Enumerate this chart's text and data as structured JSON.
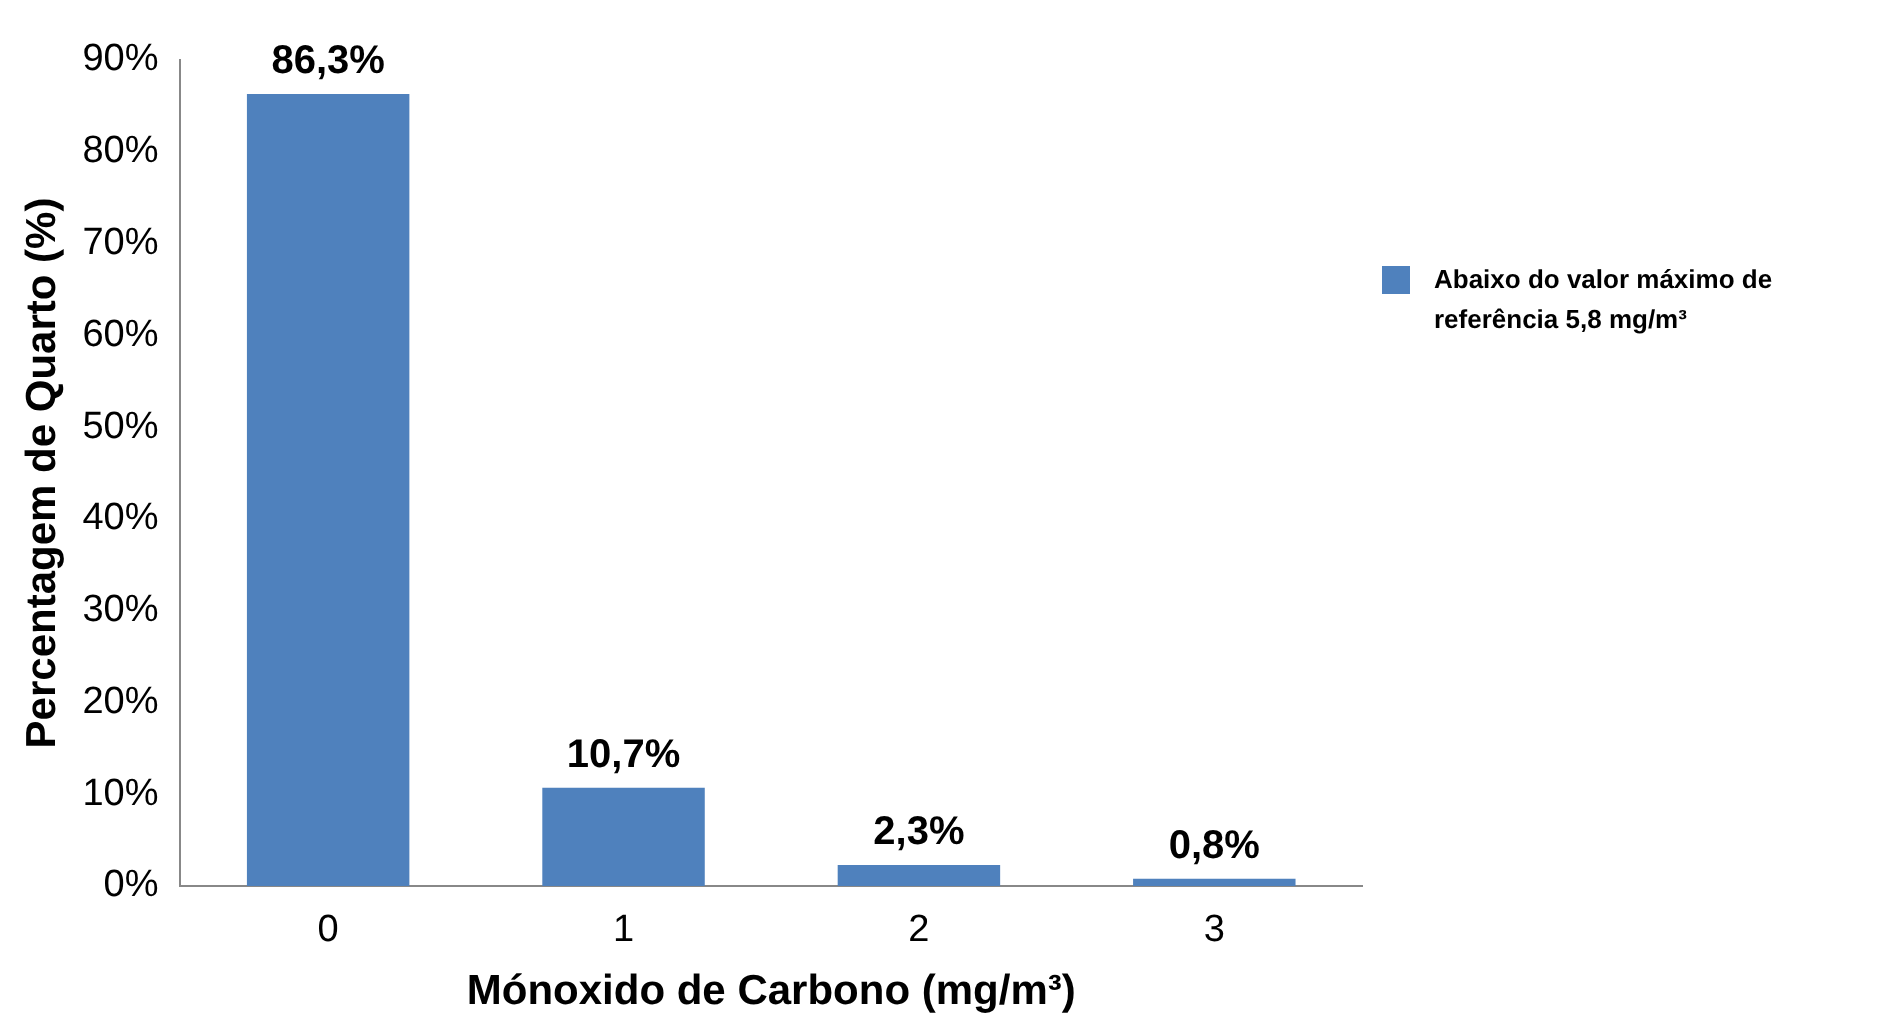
{
  "chart_data": {
    "type": "bar",
    "xlabel": "Mónoxido de Carbono (mg/m³)",
    "ylabel": "Percentagem de Quarto (%)",
    "categories": [
      "0",
      "1",
      "2",
      "3"
    ],
    "series": [
      {
        "name": "Abaixo do valor máximo de referência 5,8 mg/m³",
        "color": "#4f81bd",
        "values": [
          86.3,
          10.7,
          2.3,
          0.8
        ],
        "value_labels": [
          "86,3%",
          "10,7%",
          "2,3%",
          "0,8%"
        ]
      }
    ],
    "ylim": [
      0,
      90
    ],
    "yticks": [
      {
        "value": 0,
        "label": "0%"
      },
      {
        "value": 10,
        "label": "10%"
      },
      {
        "value": 20,
        "label": "20%"
      },
      {
        "value": 30,
        "label": "30%"
      },
      {
        "value": 40,
        "label": "40%"
      },
      {
        "value": 50,
        "label": "50%"
      },
      {
        "value": 60,
        "label": "60%"
      },
      {
        "value": 70,
        "label": "70%"
      },
      {
        "value": 80,
        "label": "80%"
      },
      {
        "value": 90,
        "label": "90%"
      }
    ],
    "grid": false,
    "legend": "right"
  }
}
